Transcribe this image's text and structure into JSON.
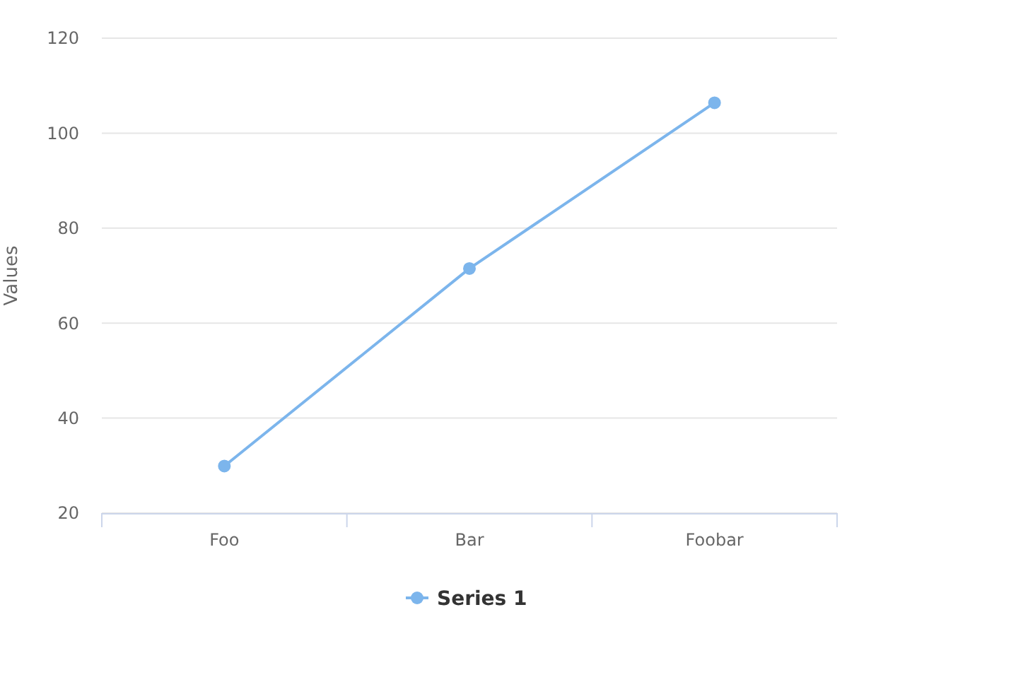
{
  "chart_data": {
    "type": "line",
    "ylabel": "Values",
    "categories": [
      "Foo",
      "Bar",
      "Foobar"
    ],
    "series": [
      {
        "name": "Series 1",
        "color": "#7cb5ec",
        "values": [
          29.9,
          71.5,
          106.4
        ]
      }
    ],
    "ylim": [
      20,
      120
    ],
    "yticks": [
      20,
      40,
      60,
      80,
      100,
      120
    ],
    "grid": "y",
    "legend": "bottom",
    "marker": "circle",
    "line_style": "solid"
  }
}
